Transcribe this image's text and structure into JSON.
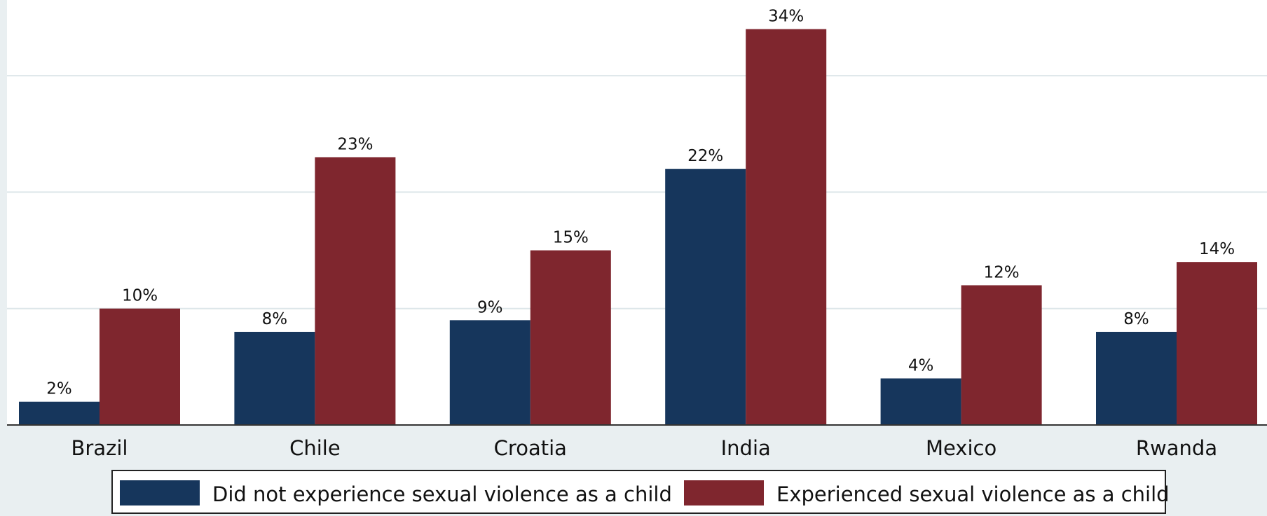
{
  "chart_data": {
    "type": "bar",
    "categories": [
      "Brazil",
      "Chile",
      "Croatia",
      "India",
      "Mexico",
      "Rwanda"
    ],
    "series": [
      {
        "name": "Did not experience sexual violence as a child",
        "values": [
          2,
          8,
          9,
          22,
          4,
          8
        ],
        "labels": [
          "2%",
          "8%",
          "9%",
          "22%",
          "4%",
          "8%"
        ],
        "color": "#16365c"
      },
      {
        "name": "Experienced sexual violence as a child",
        "values": [
          10,
          23,
          15,
          34,
          12,
          14
        ],
        "labels": [
          "10%",
          "23%",
          "15%",
          "34%",
          "12%",
          "14%"
        ],
        "color": "#7f262e"
      }
    ],
    "ylim": [
      0,
      36.5
    ],
    "gridlines": [
      10,
      20,
      30
    ],
    "grid": true,
    "legend_position": "bottom",
    "colors": {
      "plot_background": "#ffffff",
      "outer_background": "#e9eff1",
      "gridline": "#dde6e9",
      "axis": "#333333"
    }
  }
}
